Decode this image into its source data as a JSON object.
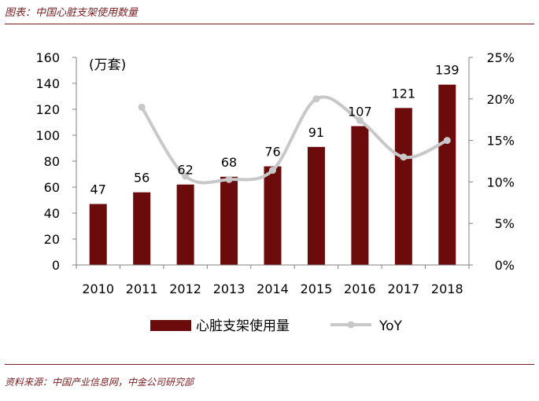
{
  "figure_title": "图表：中国心脏支架使用数量",
  "source_note": "资料来源：中国产业信息网，中金公司研究部",
  "chart_data": {
    "type": "bar",
    "unit_label": "(万套)",
    "categories": [
      "2010",
      "2011",
      "2012",
      "2013",
      "2014",
      "2015",
      "2016",
      "2017",
      "2018"
    ],
    "series": [
      {
        "name": "心脏支架使用量",
        "type": "bar",
        "axis": "left",
        "color": "#6b0b0b",
        "values": [
          47,
          56,
          62,
          68,
          76,
          91,
          107,
          121,
          139
        ]
      },
      {
        "name": "YoY",
        "type": "line",
        "axis": "right",
        "color": "#c8c8c8",
        "values": [
          null,
          19,
          10.7,
          10.3,
          11.4,
          20,
          17.4,
          13,
          15
        ]
      }
    ],
    "data_labels": [
      "47",
      "56",
      "62",
      "68",
      "76",
      "91",
      "107",
      "121",
      "139"
    ],
    "y_left": {
      "min": 0,
      "max": 160,
      "ticks": [
        "0",
        "20",
        "40",
        "60",
        "80",
        "100",
        "120",
        "140",
        "160"
      ]
    },
    "y_right": {
      "min": 0,
      "max": 25,
      "ticks": [
        "0%",
        "5%",
        "10%",
        "15%",
        "20%",
        "25%"
      ]
    },
    "grid": false,
    "legend_position": "bottom"
  }
}
